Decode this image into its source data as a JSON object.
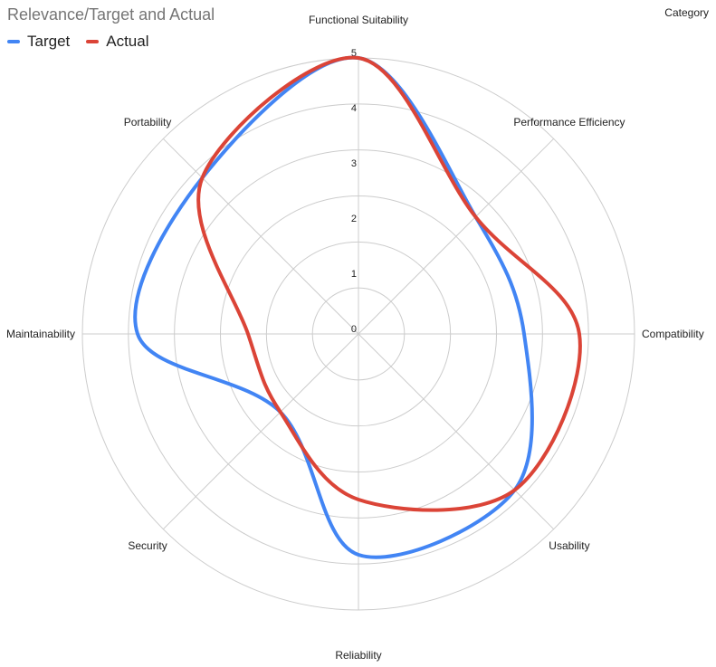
{
  "chart_data": {
    "type": "radar",
    "title": "Relevance/Target and Actual",
    "category_label": "Category",
    "categories": [
      "Functional Suitability",
      "Performance Efficiency",
      "Compatibility",
      "Usability",
      "Reliability",
      "Security",
      "Maintainability",
      "Portability"
    ],
    "rlim": [
      0,
      5
    ],
    "ticks": [
      "0",
      "1",
      "2",
      "3",
      "4",
      "5"
    ],
    "grid": true,
    "legend_position": "top-left",
    "series": [
      {
        "name": "Target",
        "color": "#4285f4",
        "values": [
          5,
          3,
          3,
          4,
          4,
          2,
          4,
          4
        ]
      },
      {
        "name": "Actual",
        "color": "#db4437",
        "values": [
          5,
          3,
          4,
          4,
          3,
          2,
          2,
          4
        ]
      }
    ]
  }
}
